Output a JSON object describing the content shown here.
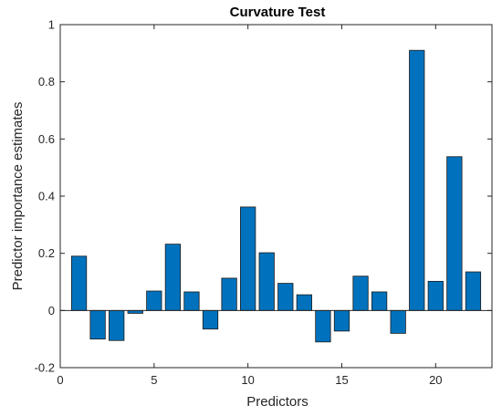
{
  "chart_data": {
    "type": "bar",
    "title": "Curvature Test",
    "xlabel": "Predictors",
    "ylabel": "Predictor importance estimates",
    "xlim": [
      0,
      23
    ],
    "ylim": [
      -0.2,
      1
    ],
    "xticks": [
      0,
      5,
      10,
      15,
      20
    ],
    "yticks": [
      -0.2,
      0,
      0.2,
      0.4,
      0.6,
      0.8,
      1
    ],
    "ytick_labels": [
      "-0.2",
      "0",
      "0.2",
      "0.4",
      "0.6",
      "0.8",
      "1"
    ],
    "x": [
      1,
      2,
      3,
      4,
      5,
      6,
      7,
      8,
      9,
      10,
      11,
      12,
      13,
      14,
      15,
      16,
      17,
      18,
      19,
      20,
      21,
      22
    ],
    "values": [
      0.19,
      -0.1,
      -0.105,
      -0.01,
      0.068,
      0.232,
      0.065,
      -0.065,
      0.113,
      0.362,
      0.202,
      0.095,
      0.055,
      -0.11,
      -0.072,
      0.12,
      0.065,
      -0.08,
      0.91,
      0.102,
      0.538,
      0.135
    ],
    "bar_color": "#0072BD",
    "grid": false,
    "legend": "none"
  }
}
